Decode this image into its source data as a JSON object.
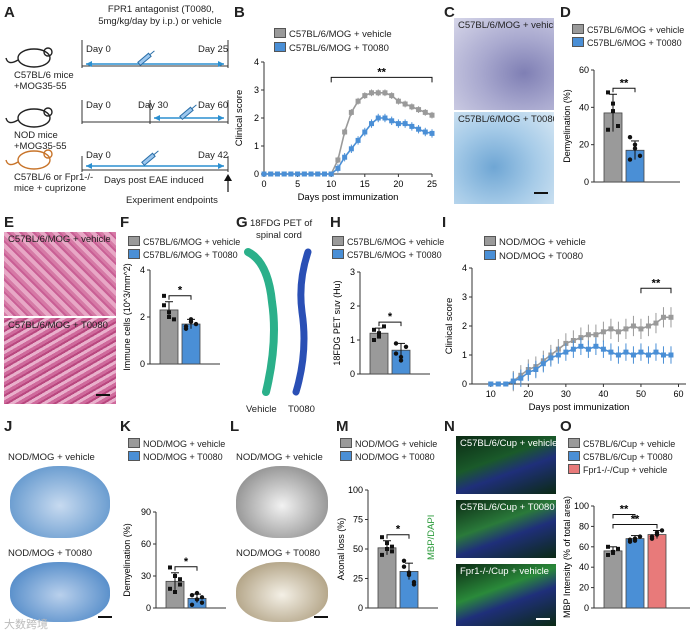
{
  "panels": {
    "A": "A",
    "B": "B",
    "C": "C",
    "D": "D",
    "E": "E",
    "F": "F",
    "G": "G",
    "H": "H",
    "I": "I",
    "J": "J",
    "K": "K",
    "L": "L",
    "M": "M",
    "N": "N",
    "O": "O"
  },
  "panelA": {
    "header": "FPR1 antagonist (T0080,",
    "header2": "5mg/kg/day by i.p.) or vehicle",
    "row1_model": "C57BL/6 mice",
    "row1_model2": "+MOG35-55",
    "row1_d0": "Day 0",
    "row1_d1": "Day 25",
    "row2_model": "NOD mice",
    "row2_model2": "+MOG35-55",
    "row2_d0": "Day 0",
    "row2_d1": "Day 30",
    "row2_d2": "Day 60",
    "row3_model": "C57BL/6 or Fpr1-/-",
    "row3_model2": "mice + cuprizone",
    "row3_d0": "Day 0",
    "row3_d1": "Day 42",
    "row3_caption": "Days post EAE induced",
    "endpoint": "Experiment endpoints"
  },
  "colors": {
    "vehicle": "#9a9a9a",
    "t0080": "#4a8fd6",
    "fpr1": "#e87a7a",
    "mouse_black": "#222222",
    "mouse_orange": "#c8742a",
    "arrow": "#2b8fd0"
  },
  "legend": {
    "c57_vehicle": "C57BL/6/MOG + vehicle",
    "c57_t0080": "C57BL/6/MOG + T0080",
    "nod_vehicle": "NOD/MOG + vehicle",
    "nod_t0080": "NOD/MOG + T0080",
    "cup_vehicle": "C57BL/6/Cup + vehicle",
    "cup_t0080": "C57BL/6/Cup + T0080",
    "cup_fpr1": "Fpr1-/-/Cup + vehicle"
  },
  "micro_labels": {
    "c_top": "C57BL/6/MOG + vehicle",
    "c_bot": "C57BL/6/MOG + T0080",
    "e_top": "C57BL/6/MOG + vehicle",
    "e_bot": "C57BL/6/MOG + T0080",
    "j_top": "NOD/MOG + vehicle",
    "j_bot": "NOD/MOG + T0080",
    "l_top": "NOD/MOG + vehicle",
    "l_bot": "NOD/MOG + T0080",
    "n_1": "C57BL/6/Cup + vehicle",
    "n_2": "C57BL/6/Cup + T0080",
    "n_3": "Fpr1-/-/Cup + vehicle",
    "n_side": "MBP/DAPI"
  },
  "g": {
    "title": "18FDG PET of",
    "title2": "spinal cord",
    "left": "Vehicle",
    "right": "T0080"
  },
  "watermark": "大数跨境",
  "chart_data": [
    {
      "id": "B",
      "type": "line",
      "title": "",
      "xlabel": "Days post immunization",
      "ylabel": "Clinical score",
      "xlim": [
        0,
        25
      ],
      "ylim": [
        0,
        4
      ],
      "xticks": [
        0,
        5,
        10,
        15,
        20,
        25
      ],
      "yticks": [
        0,
        1,
        2,
        3,
        4
      ],
      "x": [
        0,
        1,
        2,
        3,
        4,
        5,
        6,
        7,
        8,
        9,
        10,
        11,
        12,
        13,
        14,
        15,
        16,
        17,
        18,
        19,
        20,
        21,
        22,
        23,
        24,
        25
      ],
      "series": [
        {
          "name": "C57BL/6/MOG + vehicle",
          "values": [
            0,
            0,
            0,
            0,
            0,
            0,
            0,
            0,
            0,
            0,
            0,
            0.5,
            1.5,
            2.2,
            2.6,
            2.8,
            2.9,
            2.9,
            2.9,
            2.8,
            2.6,
            2.5,
            2.4,
            2.3,
            2.2,
            2.1
          ],
          "err": 0.12
        },
        {
          "name": "C57BL/6/MOG + T0080",
          "values": [
            0,
            0,
            0,
            0,
            0,
            0,
            0,
            0,
            0,
            0,
            0,
            0.2,
            0.6,
            0.9,
            1.2,
            1.5,
            1.8,
            2.0,
            2.0,
            1.9,
            1.8,
            1.8,
            1.7,
            1.6,
            1.5,
            1.45
          ],
          "err": 0.15
        }
      ],
      "annotation": "**"
    },
    {
      "id": "D",
      "type": "bar",
      "ylabel": "Demyelination (%)",
      "ylim": [
        0,
        60
      ],
      "yticks": [
        0,
        20,
        40,
        60
      ],
      "categories": [
        "C57BL/6/MOG + vehicle",
        "C57BL/6/MOG + T0080"
      ],
      "values": [
        37,
        17
      ],
      "err": [
        10,
        5
      ],
      "points": [
        [
          48,
          42,
          30,
          28,
          38
        ],
        [
          24,
          18,
          14,
          12,
          20
        ]
      ],
      "annotation": "**"
    },
    {
      "id": "F",
      "type": "bar",
      "ylabel": "Immune cells (10^3/mm^2)",
      "ylim": [
        0,
        4
      ],
      "yticks": [
        0,
        2,
        4
      ],
      "categories": [
        "C57BL/6/MOG + vehicle",
        "C57BL/6/MOG + T0080"
      ],
      "values": [
        2.3,
        1.7
      ],
      "err": [
        0.35,
        0.2
      ],
      "points": [
        [
          2.9,
          2.2,
          1.9,
          2.5,
          2.0
        ],
        [
          1.6,
          1.9,
          1.7,
          1.5,
          1.8
        ]
      ],
      "annotation": "*"
    },
    {
      "id": "H",
      "type": "bar",
      "ylabel": "18FDG PET suv (Hu)",
      "ylim": [
        0,
        3
      ],
      "yticks": [
        0,
        1,
        2,
        3
      ],
      "categories": [
        "C57BL/6/MOG + vehicle",
        "C57BL/6/MOG + T0080"
      ],
      "values": [
        1.2,
        0.7
      ],
      "err": [
        0.15,
        0.2
      ],
      "points": [
        [
          1.3,
          1.1,
          1.4,
          1.0,
          1.2
        ],
        [
          0.9,
          0.5,
          0.8,
          0.6,
          0.4
        ]
      ],
      "annotation": "*"
    },
    {
      "id": "I",
      "type": "line",
      "xlabel": "Days post immunization",
      "ylabel": "Clinical score",
      "xlim": [
        5,
        62
      ],
      "ylim": [
        0,
        4
      ],
      "xticks": [
        10,
        20,
        30,
        40,
        50,
        60
      ],
      "yticks": [
        0,
        1,
        2,
        3,
        4
      ],
      "x": [
        10,
        12,
        14,
        16,
        18,
        20,
        22,
        24,
        26,
        28,
        30,
        32,
        34,
        36,
        38,
        40,
        42,
        44,
        46,
        48,
        50,
        52,
        54,
        56,
        58
      ],
      "series": [
        {
          "name": "NOD/MOG + vehicle",
          "values": [
            0,
            0,
            0,
            0.1,
            0.3,
            0.5,
            0.6,
            0.8,
            1.0,
            1.2,
            1.4,
            1.5,
            1.6,
            1.7,
            1.7,
            1.8,
            1.9,
            1.8,
            1.9,
            2.0,
            1.9,
            2.0,
            2.1,
            2.3,
            2.3
          ],
          "err": 0.35
        },
        {
          "name": "NOD/MOG + T0080",
          "values": [
            0,
            0,
            0,
            0.1,
            0.2,
            0.4,
            0.5,
            0.7,
            0.9,
            1.0,
            1.1,
            1.2,
            1.3,
            1.2,
            1.3,
            1.2,
            1.1,
            1.0,
            1.1,
            1.0,
            1.1,
            1.0,
            1.1,
            1.0,
            1.0
          ],
          "err": 0.3
        }
      ],
      "annotation": "**"
    },
    {
      "id": "K",
      "type": "bar",
      "ylabel": "Demyelination (%)",
      "ylim": [
        0,
        90
      ],
      "yticks": [
        0,
        30,
        60,
        90
      ],
      "categories": [
        "NOD/MOG + vehicle",
        "NOD/MOG + T0080"
      ],
      "values": [
        25,
        9
      ],
      "err": [
        8,
        4
      ],
      "points": [
        [
          38,
          30,
          22,
          18,
          15,
          27
        ],
        [
          12,
          8,
          5,
          3,
          14,
          10
        ]
      ],
      "annotation": "*"
    },
    {
      "id": "M",
      "type": "bar",
      "ylabel": "Axonal loss (%)",
      "ylim": [
        0,
        100
      ],
      "yticks": [
        0,
        25,
        50,
        75,
        100
      ],
      "categories": [
        "NOD/MOG + vehicle",
        "NOD/MOG + T0080"
      ],
      "values": [
        51,
        31
      ],
      "err": [
        6,
        7
      ],
      "points": [
        [
          60,
          55,
          48,
          45,
          50,
          52
        ],
        [
          40,
          30,
          22,
          35,
          28,
          20
        ]
      ],
      "annotation": "*"
    },
    {
      "id": "O",
      "type": "bar",
      "ylabel": "MBP Intensity (% of total area)",
      "ylim": [
        0,
        100
      ],
      "yticks": [
        0,
        20,
        40,
        60,
        80,
        100
      ],
      "categories": [
        "C57BL/6/Cup + vehicle",
        "C57BL/6/Cup + T0080",
        "Fpr1-/-/Cup + vehicle"
      ],
      "values": [
        56,
        68,
        72
      ],
      "err": [
        4,
        3,
        4
      ],
      "points": [
        [
          52,
          55,
          58,
          60,
          54
        ],
        [
          65,
          68,
          70,
          67,
          66
        ],
        [
          70,
          74,
          76,
          68,
          72
        ]
      ],
      "annotation": "**"
    }
  ]
}
